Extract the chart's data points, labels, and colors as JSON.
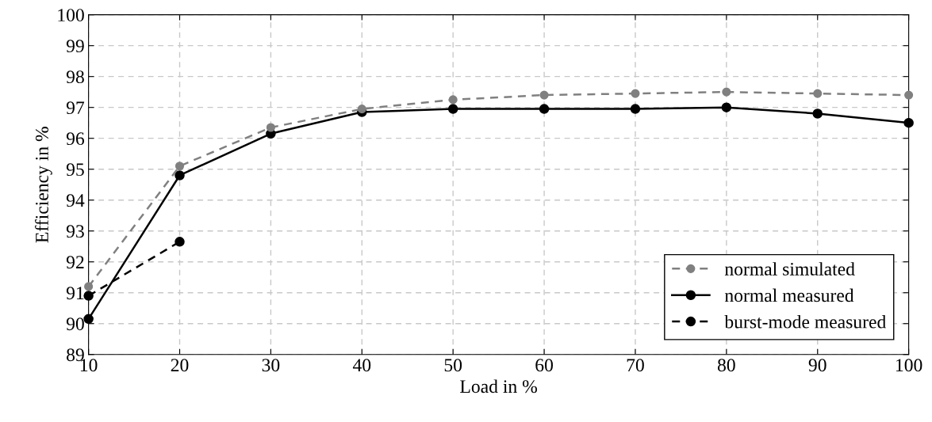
{
  "chart_data": {
    "type": "line",
    "xlabel": "Load in %",
    "ylabel": "Efficiency in %",
    "xlim": [
      10,
      100
    ],
    "xticks": [
      10,
      20,
      30,
      40,
      50,
      60,
      70,
      80,
      90,
      100
    ],
    "ylim": [
      89,
      100
    ],
    "yticks": [
      89,
      90,
      91,
      92,
      93,
      94,
      95,
      96,
      97,
      98,
      99,
      100
    ],
    "grid": true,
    "legend": "bottom right",
    "marker": "circle",
    "series": [
      {
        "name": "normal simulated",
        "color": "#808080",
        "line_style": "dashed",
        "x": [
          10,
          20,
          30,
          40,
          50,
          60,
          70,
          80,
          90,
          100
        ],
        "values": [
          91.2,
          95.1,
          96.35,
          96.95,
          97.25,
          97.4,
          97.45,
          97.5,
          97.45,
          97.4
        ]
      },
      {
        "name": "normal measured",
        "color": "#000000",
        "line_style": "solid",
        "x": [
          10,
          20,
          30,
          40,
          50,
          60,
          70,
          80,
          90,
          100
        ],
        "values": [
          90.15,
          94.8,
          96.15,
          96.85,
          96.95,
          96.95,
          96.95,
          97.0,
          96.8,
          96.5
        ]
      },
      {
        "name": "burst-mode measured",
        "color": "#000000",
        "line_style": "dashed",
        "x": [
          10,
          20
        ],
        "values": [
          90.9,
          92.65
        ]
      }
    ]
  }
}
